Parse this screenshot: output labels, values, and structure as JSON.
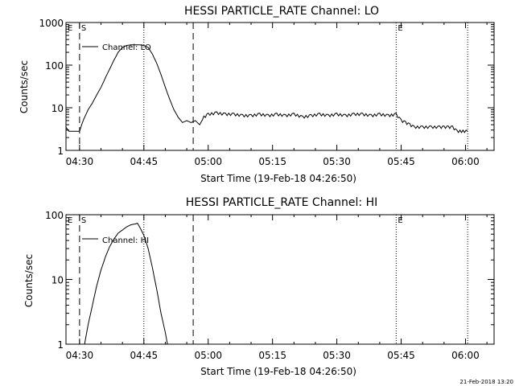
{
  "footer": {
    "timestamp": "21-Feb-2018 13:20"
  },
  "chart_data": [
    {
      "type": "line",
      "title": "HESSI PARTICLE_RATE Channel: LO",
      "xlabel": "Start Time (19-Feb-18 04:26:50)",
      "ylabel": "Counts/sec",
      "yscale": "log",
      "ylim": [
        1,
        1000
      ],
      "xlim": [
        "04:26:50",
        "06:06:40"
      ],
      "x_ticks": [
        "04:30",
        "04:45",
        "05:00",
        "05:15",
        "05:30",
        "05:45",
        "06:00"
      ],
      "y_ticks": [
        "1",
        "10",
        "100",
        "1000"
      ],
      "legend": {
        "label": "Channel: LO",
        "position": "top-left"
      },
      "markers": [
        {
          "label": "E",
          "time": "04:26:50",
          "style": "dotted"
        },
        {
          "label": "S",
          "time": "04:30:00",
          "style": "dashed"
        },
        {
          "label": "",
          "time": "04:45:00",
          "style": "dotted"
        },
        {
          "label": "",
          "time": "04:56:30",
          "style": "dashed"
        },
        {
          "label": "E",
          "time": "05:43:50",
          "style": "dotted"
        },
        {
          "label": "",
          "time": "06:00:30",
          "style": "dotted"
        }
      ],
      "series": [
        {
          "x": [
            "04:26:50",
            "04:27:30",
            "04:28:00",
            "04:29:00",
            "04:30:00",
            "04:30:30",
            "04:31:00",
            "04:31:30",
            "04:32:00",
            "04:33:00",
            "04:34:00",
            "04:35:00",
            "04:36:00",
            "04:37:00",
            "04:38:00",
            "04:39:00",
            "04:40:00",
            "04:41:00",
            "04:42:00",
            "04:43:00",
            "04:44:00",
            "04:45:00",
            "04:46:00",
            "04:47:00",
            "04:48:00",
            "04:49:00",
            "04:50:00",
            "04:51:00",
            "04:52:00",
            "04:53:00",
            "04:54:00",
            "04:55:00",
            "04:56:00",
            "04:57:00",
            "04:58:00",
            "04:59:00",
            "05:00:00",
            "05:02:00",
            "05:04:00",
            "05:06:00",
            "05:08:00",
            "05:10:00",
            "05:12:00",
            "05:14:00",
            "05:16:00",
            "05:18:00",
            "05:20:00",
            "05:22:00",
            "05:24:00",
            "05:26:00",
            "05:28:00",
            "05:30:00",
            "05:32:00",
            "05:34:00",
            "05:36:00",
            "05:38:00",
            "05:40:00",
            "05:42:00",
            "05:43:50",
            "05:45:00",
            "05:46:00",
            "05:47:00",
            "05:48:00",
            "05:50:00",
            "05:52:00",
            "05:54:00",
            "05:55:00",
            "05:56:00",
            "05:57:00",
            "05:58:00",
            "06:00:30"
          ],
          "y": [
            3.5,
            2.8,
            2.8,
            2.8,
            2.8,
            4,
            5.5,
            7,
            9,
            13,
            20,
            30,
            50,
            80,
            130,
            200,
            260,
            290,
            300,
            300,
            300,
            290,
            260,
            180,
            110,
            60,
            30,
            16,
            9,
            6,
            4.5,
            5,
            4.5,
            5,
            4,
            6,
            7,
            7.5,
            7,
            7,
            6.5,
            6.5,
            7,
            6.5,
            7,
            6.5,
            7,
            6,
            6.5,
            7,
            6.5,
            7,
            6.5,
            7,
            7,
            6.5,
            7,
            6.5,
            7,
            5,
            4.5,
            4,
            3.5,
            3.5,
            3.5,
            3.5,
            3.5,
            3.5,
            3.5,
            2.8,
            2.8
          ]
        }
      ]
    },
    {
      "type": "line",
      "title": "HESSI PARTICLE_RATE Channel: HI",
      "xlabel": "Start Time (19-Feb-18 04:26:50)",
      "ylabel": "Counts/sec",
      "yscale": "log",
      "ylim": [
        1,
        100
      ],
      "xlim": [
        "04:26:50",
        "06:06:40"
      ],
      "x_ticks": [
        "04:30",
        "04:45",
        "05:00",
        "05:15",
        "05:30",
        "05:45",
        "06:00"
      ],
      "y_ticks": [
        "1",
        "10",
        "100"
      ],
      "legend": {
        "label": "Channel: HI",
        "position": "top-left"
      },
      "markers": [
        {
          "label": "E",
          "time": "04:26:50",
          "style": "dotted"
        },
        {
          "label": "S",
          "time": "04:30:00",
          "style": "dashed"
        },
        {
          "label": "",
          "time": "04:45:00",
          "style": "dotted"
        },
        {
          "label": "",
          "time": "04:56:30",
          "style": "dashed"
        },
        {
          "label": "E",
          "time": "05:43:50",
          "style": "dotted"
        },
        {
          "label": "",
          "time": "06:00:30",
          "style": "dotted"
        }
      ],
      "series": [
        {
          "x": [
            "04:31:10",
            "04:32:00",
            "04:33:00",
            "04:34:00",
            "04:35:00",
            "04:36:00",
            "04:37:00",
            "04:38:00",
            "04:39:00",
            "04:40:00",
            "04:41:00",
            "04:42:00",
            "04:43:00",
            "04:43:30",
            "04:44:00",
            "04:45:00",
            "04:46:00",
            "04:47:00",
            "04:48:00",
            "04:49:00",
            "04:50:00",
            "04:50:30"
          ],
          "y": [
            1,
            2,
            4,
            8,
            14,
            22,
            32,
            42,
            52,
            58,
            65,
            70,
            72,
            74,
            65,
            48,
            30,
            15,
            7,
            3,
            1.5,
            1
          ]
        }
      ]
    }
  ]
}
